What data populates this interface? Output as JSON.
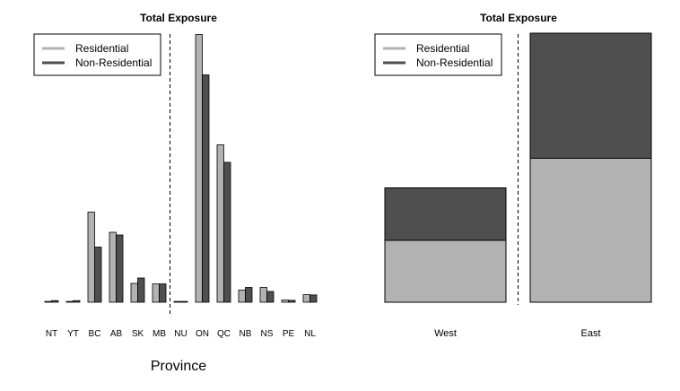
{
  "colors": {
    "residential": "#b2b2b2",
    "non_residential": "#4f4f4f",
    "stroke": "#000000",
    "background": "#ffffff"
  },
  "chart_data": [
    {
      "type": "bar",
      "title": "Total Exposure",
      "xlabel": "Province",
      "ylabel": "",
      "ylim": [
        0,
        100
      ],
      "grid": false,
      "axes_visible": false,
      "bar_mode": "grouped",
      "legend": {
        "placement": "top-left",
        "entries": [
          "Residential",
          "Non-Residential"
        ]
      },
      "categories": [
        "NT",
        "YT",
        "BC",
        "AB",
        "SK",
        "MB",
        "NU",
        "ON",
        "QC",
        "NB",
        "NS",
        "PE",
        "NL"
      ],
      "series": [
        {
          "name": "Residential",
          "color": "#b2b2b2",
          "values": [
            0.3,
            0.3,
            33.5,
            26,
            7,
            6.8,
            0.3,
            99.5,
            58.5,
            4.5,
            5.5,
            0.8,
            2.8
          ]
        },
        {
          "name": "Non-Residential",
          "color": "#4f4f4f",
          "values": [
            0.6,
            0.6,
            20.5,
            25,
            9,
            6.8,
            0.3,
            84.5,
            52,
            5.5,
            4,
            0.7,
            2.7
          ]
        }
      ],
      "divider_after_category": "MB"
    },
    {
      "type": "bar",
      "title": "Total Exposure",
      "xlabel": "",
      "ylabel": "",
      "ylim": [
        0,
        100
      ],
      "grid": false,
      "axes_visible": false,
      "bar_mode": "stacked",
      "legend": {
        "placement": "top-left",
        "entries": [
          "Residential",
          "Non-Residential"
        ]
      },
      "categories": [
        "West",
        "East"
      ],
      "series": [
        {
          "name": "Residential",
          "color": "#b2b2b2",
          "values": [
            23,
            53.5
          ]
        },
        {
          "name": "Non-Residential",
          "color": "#4f4f4f",
          "values": [
            19.5,
            46.5
          ]
        }
      ],
      "divider_after_category": "West"
    }
  ]
}
